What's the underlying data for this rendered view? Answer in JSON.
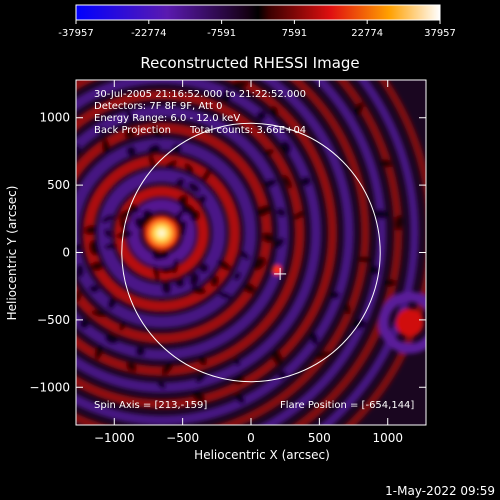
{
  "colorbar": {
    "ticks": [
      "-37957",
      "-22774",
      "-7591",
      "7591",
      "22774",
      "37957"
    ]
  },
  "chart_data": {
    "type": "heatmap",
    "title": "Reconstructed RHESSI Image",
    "xlabel": "Heliocentric X (arcsec)",
    "ylabel": "Heliocentric Y (arcsec)",
    "xlim": [
      -1280,
      1280
    ],
    "ylim": [
      -1280,
      1280
    ],
    "xticks": [
      -1000,
      -500,
      0,
      500,
      1000
    ],
    "yticks": [
      -1000,
      -500,
      0,
      500,
      1000
    ],
    "xtick_labels": [
      "−1000",
      "−500",
      "0",
      "500",
      "1000"
    ],
    "ytick_labels": [
      "−1000",
      "−500",
      "0",
      "500",
      "1000"
    ],
    "value_range": [
      -37957,
      37957
    ],
    "colormap": "rhessi-blue-purple-red-yellow-white",
    "info_lines": [
      "30-Jul-2005 21:16:52.000 to 21:22:52.000",
      "Detectors: 7F 8F 9F, Att 0",
      "Energy Range: 6.0 - 12.0 keV",
      "Back Projection      Total counts: 3.66E+04"
    ],
    "spin_axis_label": "Spin Axis = [213,-159]",
    "flare_position_label": "Flare Position = [-654,144]",
    "spin_axis": [
      213,
      -159
    ],
    "flare_position": [
      -654,
      144
    ],
    "solar_limb_radius_arcsec": 945,
    "solar_limb_center": [
      0,
      0
    ],
    "peak_value": 37957
  },
  "footer": {
    "timestamp": "1-May-2022 09:59"
  },
  "colors": {
    "background": "#000000",
    "foreground": "#ffffff",
    "limb": "#ffffff"
  }
}
